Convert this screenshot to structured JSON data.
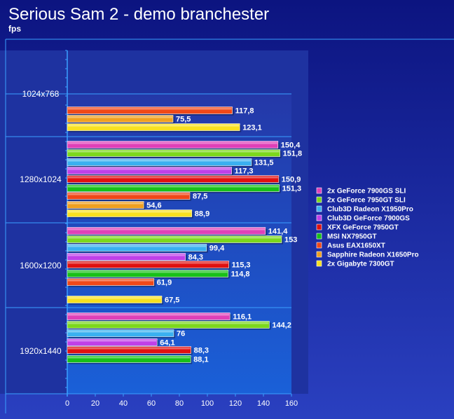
{
  "chart_data": {
    "type": "bar",
    "orientation": "horizontal",
    "title": "Serious Sam 2 - demo branchester",
    "subtitle": "fps",
    "categories": [
      "1024x768",
      "1280x1024",
      "1600x1200",
      "1920x1440"
    ],
    "series": [
      {
        "name": "2x GeForce 7900GS SLI",
        "color": "#e040b8",
        "values": [
          null,
          150.4,
          141.4,
          116.1
        ],
        "labels": [
          "",
          "150,4",
          "141,4",
          "116,1"
        ]
      },
      {
        "name": "2x GeForce 7950GT SLI",
        "color": "#7cd81c",
        "values": [
          null,
          151.8,
          153,
          144.2
        ],
        "labels": [
          "",
          "151,8",
          "153",
          "144,2"
        ]
      },
      {
        "name": "Club3D Radeon X1950Pro",
        "color": "#3ab0f0",
        "values": [
          null,
          131.5,
          99.4,
          76
        ],
        "labels": [
          "",
          "131,5",
          "99,4",
          "76"
        ]
      },
      {
        "name": "Club3D GeForce 7900GS",
        "color": "#c040e8",
        "values": [
          null,
          117.3,
          84.3,
          64.1
        ],
        "labels": [
          "",
          "117,3",
          "84,3",
          "64,1"
        ]
      },
      {
        "name": "XFX GeForce 7950GT",
        "color": "#e01010",
        "values": [
          null,
          150.9,
          115.3,
          88.3
        ],
        "labels": [
          "",
          "150,9",
          "115,3",
          "88,3"
        ]
      },
      {
        "name": "MSI NX7950GT",
        "color": "#18c018",
        "values": [
          null,
          151.3,
          114.8,
          88.1
        ],
        "labels": [
          "",
          "151,3",
          "114,8",
          "88,1"
        ]
      },
      {
        "name": "Asus EAX1650XT",
        "color": "#f04818",
        "values": [
          117.8,
          87.5,
          61.9,
          null
        ],
        "labels": [
          "117,8",
          "87,5",
          "61,9",
          ""
        ]
      },
      {
        "name": "Sapphire Radeon X1650Pro",
        "color": "#f0a020",
        "values": [
          75.5,
          54.6,
          null,
          null
        ],
        "labels": [
          "75,5",
          "54,6",
          "",
          ""
        ]
      },
      {
        "name": "2x Gigabyte 7300GT",
        "color": "#f8e020",
        "values": [
          123.1,
          88.9,
          67.5,
          null
        ],
        "labels": [
          "123,1",
          "88,9",
          "67,5",
          ""
        ]
      }
    ],
    "xlim": [
      0,
      160
    ],
    "xticks": [
      "0",
      "20",
      "40",
      "60",
      "80",
      "100",
      "120",
      "140",
      "160"
    ],
    "grid": false,
    "legend_position": "right"
  }
}
